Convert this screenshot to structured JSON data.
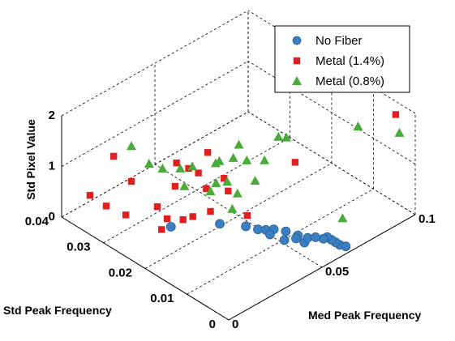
{
  "chart_data": {
    "type": "scatter",
    "projection": "3d",
    "x": {
      "label": "Med Peak Frequency",
      "lim": [
        0,
        0.1
      ],
      "ticks": [
        {
          "v": 0,
          "t": "0"
        },
        {
          "v": 0.05,
          "t": "0.05"
        },
        {
          "v": 0.1,
          "t": "0.1"
        }
      ]
    },
    "y": {
      "label": "Std Peak Frequency",
      "lim": [
        0,
        0.04
      ],
      "ticks": [
        {
          "v": 0,
          "t": "0"
        },
        {
          "v": 0.01,
          "t": "0.01"
        },
        {
          "v": 0.02,
          "t": "0.02"
        },
        {
          "v": 0.03,
          "t": "0.03"
        },
        {
          "v": 0.04,
          "t": "0.04"
        }
      ]
    },
    "z": {
      "label": "Std Pixel Value",
      "lim": [
        0,
        2
      ],
      "ticks": [
        {
          "v": 0,
          "t": "0"
        },
        {
          "v": 1,
          "t": "1"
        },
        {
          "v": 2,
          "t": "2"
        }
      ]
    },
    "grid": true,
    "legend_position": "top-right",
    "series": [
      {
        "name": "No Fiber",
        "marker": "circle",
        "color": "#3a7fc1",
        "points": [
          [
            0.045,
            0.016,
            0.1
          ],
          [
            0.047,
            0.014,
            0.1
          ],
          [
            0.049,
            0.013,
            0.1
          ],
          [
            0.051,
            0.012,
            0.12
          ],
          [
            0.053,
            0.01,
            0.14
          ],
          [
            0.05,
            0.009,
            0.08
          ],
          [
            0.055,
            0.008,
            0.12
          ],
          [
            0.054,
            0.006,
            0.1
          ],
          [
            0.058,
            0.007,
            0.06
          ],
          [
            0.04,
            0.02,
            0.05
          ],
          [
            0.025,
            0.025,
            0.05
          ],
          [
            0.054,
            0.008,
            0.08
          ],
          [
            0.049,
            0.012,
            0.06
          ],
          [
            0.064,
            0.002,
            0.05
          ],
          [
            0.064,
            0.003,
            0.05
          ],
          [
            0.064,
            0.004,
            0.05
          ],
          [
            0.064,
            0.005,
            0.05
          ],
          [
            0.065,
            0.001,
            0.05
          ],
          [
            0.062,
            0.005,
            0.06
          ],
          [
            0.06,
            0.006,
            0.08
          ]
        ]
      },
      {
        "name": "Metal (1.4%)",
        "marker": "square",
        "color": "#e02020",
        "points": [
          [
            0.004,
            0.035,
            0.6
          ],
          [
            0.006,
            0.032,
            0.5
          ],
          [
            0.01,
            0.032,
            1.4
          ],
          [
            0.015,
            0.03,
            0.9
          ],
          [
            0.02,
            0.026,
            0.5
          ],
          [
            0.025,
            0.024,
            0.9
          ],
          [
            0.03,
            0.023,
            1.2
          ],
          [
            0.035,
            0.021,
            0.8
          ],
          [
            0.04,
            0.019,
            1.0
          ],
          [
            0.038,
            0.022,
            1.4
          ],
          [
            0.028,
            0.025,
            1.25
          ],
          [
            0.033,
            0.022,
            1.1
          ],
          [
            0.048,
            0.017,
            0.2
          ],
          [
            0.058,
            0.01,
            1.4
          ],
          [
            0.023,
            0.025,
            0.25
          ],
          [
            0.027,
            0.023,
            0.25
          ],
          [
            0.03,
            0.022,
            0.3
          ],
          [
            0.035,
            0.02,
            0.4
          ],
          [
            0.04,
            0.018,
            0.8
          ],
          [
            0.012,
            0.03,
            0.3
          ],
          [
            0.02,
            0.025,
            0.1
          ],
          [
            0.094,
            0.002,
            2.0
          ]
        ]
      },
      {
        "name": "Metal (0.8%)",
        "marker": "triangle",
        "color": "#4aab3a",
        "points": [
          [
            0.015,
            0.03,
            1.6
          ],
          [
            0.02,
            0.028,
            1.25
          ],
          [
            0.025,
            0.027,
            1.1
          ],
          [
            0.03,
            0.025,
            1.1
          ],
          [
            0.032,
            0.023,
            1.2
          ],
          [
            0.04,
            0.021,
            1.2
          ],
          [
            0.045,
            0.019,
            1.3
          ],
          [
            0.05,
            0.018,
            1.2
          ],
          [
            0.055,
            0.016,
            1.2
          ],
          [
            0.048,
            0.019,
            1.5
          ],
          [
            0.058,
            0.014,
            1.7
          ],
          [
            0.06,
            0.013,
            1.7
          ],
          [
            0.035,
            0.02,
            0.8
          ],
          [
            0.038,
            0.02,
            0.9
          ],
          [
            0.03,
            0.024,
            0.8
          ],
          [
            0.042,
            0.021,
            1.2
          ],
          [
            0.044,
            0.02,
            0.8
          ],
          [
            0.05,
            0.016,
            0.9
          ],
          [
            0.045,
            0.018,
            0.65
          ],
          [
            0.04,
            0.017,
            0.5
          ],
          [
            0.085,
            0.007,
            1.7
          ],
          [
            0.096,
            0.002,
            1.6
          ],
          [
            0.07,
            0.004,
            0.35
          ]
        ]
      }
    ]
  }
}
